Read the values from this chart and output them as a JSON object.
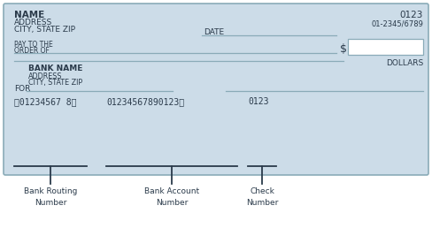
{
  "bg_color": "#ccdce8",
  "border_color": "#8aabb8",
  "dark_color": "#2a3a4a",
  "line_color": "#8aabb8",
  "name": "NAME",
  "address": "ADDRESS",
  "city_state": "CITY, STATE ZIP",
  "check_number": "0123",
  "routing_number_text": "01-2345/6789",
  "date_label": "DATE",
  "pay_to_label": "PAY TO THE",
  "order_of_label": "ORDER OF",
  "dollar_sign": "$",
  "dollars_label": "DOLLARS",
  "bank_name": "BANK NAME",
  "bank_address": "ADDRESS",
  "bank_city": "CITY, STATE ZIP",
  "for_label": "FOR",
  "micr_routing": "⃉01234567 8⃉",
  "micr_account": "01234567890123⃄",
  "micr_check": "0123",
  "label_routing": "Bank Routing\nNumber",
  "label_account": "Bank Account\nNumber",
  "label_check": "Check\nNumber",
  "fig_width": 4.88,
  "fig_height": 2.84
}
